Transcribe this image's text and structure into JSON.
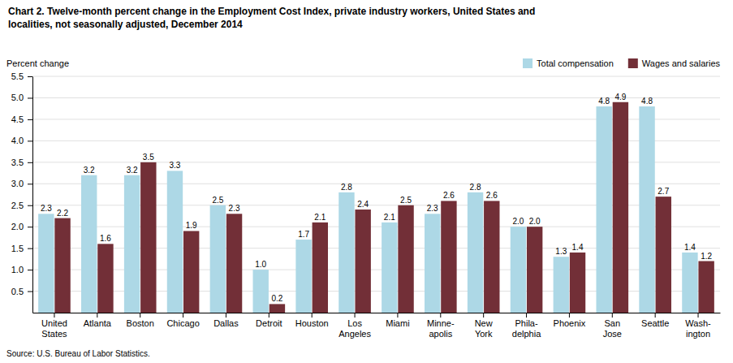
{
  "chart_data": {
    "type": "bar",
    "title": "Chart 2. Twelve-month percent change in the Employment Cost Index, private industry workers, United States and\nlocalities, not seasonally adjusted, December 2014",
    "ylabel": "Percent change",
    "source": "Source: U.S. Bureau of Labor Statistics.",
    "categories": [
      "United\nStates",
      "Atlanta",
      "Boston",
      "Chicago",
      "Dallas",
      "Detroit",
      "Houston",
      "Los\nAngeles",
      "Miami",
      "Minne-\napolis",
      "New\nYork",
      "Phila-\ndelphia",
      "Phoenix",
      "San\nJose",
      "Seattle",
      "Wash-\nington"
    ],
    "series": [
      {
        "name": "Total compensation",
        "color": "#add8e6",
        "values": [
          2.3,
          3.2,
          3.2,
          3.3,
          2.5,
          1.0,
          1.7,
          2.8,
          2.1,
          2.3,
          2.8,
          2.0,
          1.3,
          4.8,
          4.8,
          1.4
        ],
        "value_labels": [
          "2.3",
          "3.2",
          "3.2",
          "3.3",
          "2.5",
          "1.0",
          "1.7",
          "2.8",
          "2.1",
          "2.3",
          "2.8",
          "2.0",
          "1.3",
          "4.8",
          "4.8",
          "1.4"
        ]
      },
      {
        "name": "Wages and salaries",
        "color": "#722F37",
        "values": [
          2.2,
          1.6,
          3.5,
          1.9,
          2.3,
          0.2,
          2.1,
          2.4,
          2.5,
          2.6,
          2.6,
          2.0,
          1.4,
          4.9,
          2.7,
          1.2
        ],
        "value_labels": [
          "2.2",
          "1.6",
          "3.5",
          "1.9",
          "2.3",
          "0.2",
          "2.1",
          "2.4",
          "2.5",
          "2.6",
          "2.6",
          "2.0",
          "1.4",
          "4.9",
          "2.7",
          "1.2"
        ]
      }
    ],
    "ylim": [
      0,
      5.5
    ],
    "yticks": [
      0.5,
      {
        "value": 1.0,
        "label": "1.0"
      },
      1.5,
      {
        "value": 2.0,
        "label": "2.0"
      },
      2.5,
      {
        "value": 3.0,
        "label": "3.0"
      },
      3.5,
      {
        "value": 4.0,
        "label": "4.0"
      },
      4.5,
      {
        "value": 5.0,
        "label": "5.0"
      },
      5.5
    ],
    "grid": true,
    "legend": "upper right",
    "data_labels": true
  }
}
